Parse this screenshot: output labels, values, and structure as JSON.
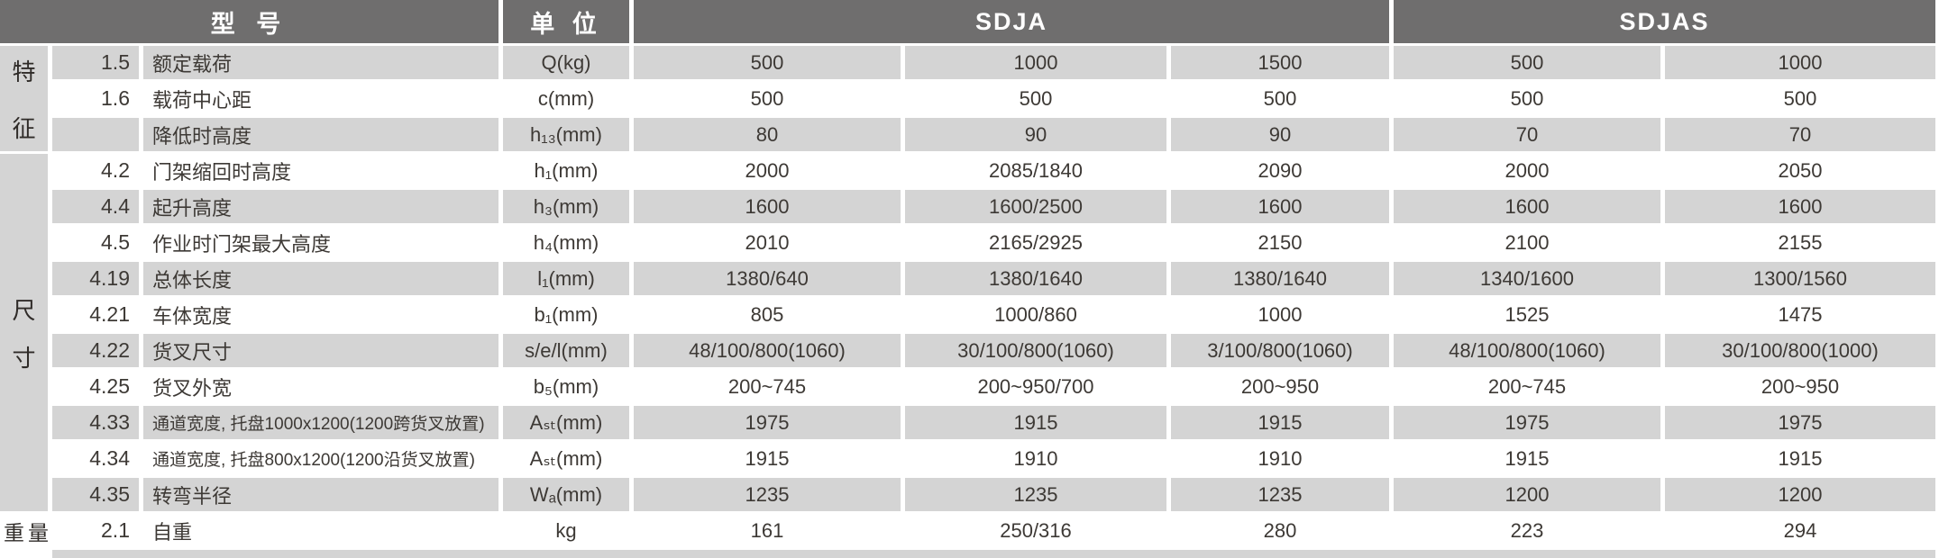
{
  "table": {
    "header": {
      "model": "型 号",
      "unit": "单 位",
      "sdja": "SDJA",
      "sdjas": "SDJAS"
    },
    "groups": {
      "features": "特征",
      "dimensions": "尺寸",
      "weight": "重量"
    },
    "rows": [
      {
        "no": "1.5",
        "label": "额定载荷",
        "unit": "Q(kg)",
        "values": [
          "500",
          "1000",
          "1500",
          "500",
          "1000"
        ]
      },
      {
        "no": "1.6",
        "label": "载荷中心距",
        "unit": "c(mm)",
        "values": [
          "500",
          "500",
          "500",
          "500",
          "500"
        ]
      },
      {
        "no": "",
        "label": "降低时高度",
        "unit": "h₁₃(mm)",
        "values": [
          "80",
          "90",
          "90",
          "70",
          "70"
        ]
      },
      {
        "no": "4.2",
        "label": "门架缩回时高度",
        "unit": "h₁(mm)",
        "values": [
          "2000",
          "2085/1840",
          "2090",
          "2000",
          "2050"
        ]
      },
      {
        "no": "4.4",
        "label": "起升高度",
        "unit": "h₃(mm)",
        "values": [
          "1600",
          "1600/2500",
          "1600",
          "1600",
          "1600"
        ]
      },
      {
        "no": "4.5",
        "label": "作业时门架最大高度",
        "unit": "h₄(mm)",
        "values": [
          "2010",
          "2165/2925",
          "2150",
          "2100",
          "2155"
        ]
      },
      {
        "no": "4.19",
        "label": "总体长度",
        "unit": "l₁(mm)",
        "values": [
          "1380/640",
          "1380/1640",
          "1380/1640",
          "1340/1600",
          "1300/1560"
        ]
      },
      {
        "no": "4.21",
        "label": "车体宽度",
        "unit": "b₁(mm)",
        "values": [
          "805",
          "1000/860",
          "1000",
          "1525",
          "1475"
        ]
      },
      {
        "no": "4.22",
        "label": "货叉尺寸",
        "unit": "s/e/l(mm)",
        "values": [
          "48/100/800(1060)",
          "30/100/800(1060)",
          "3/100/800(1060)",
          "48/100/800(1060)",
          "30/100/800(1000)"
        ]
      },
      {
        "no": "4.25",
        "label": "货叉外宽",
        "unit": "b₅(mm)",
        "values": [
          "200~745",
          "200~950/700",
          "200~950",
          "200~745",
          "200~950"
        ]
      },
      {
        "no": "4.33",
        "label": "通道宽度, 托盘1000x1200(1200跨货叉放置)",
        "unit": "Aₛₜ(mm)",
        "values": [
          "1975",
          "1915",
          "1915",
          "1975",
          "1975"
        ]
      },
      {
        "no": "4.34",
        "label": "通道宽度, 托盘800x1200(1200沿货叉放置)",
        "unit": "Aₛₜ(mm)",
        "values": [
          "1915",
          "1910",
          "1910",
          "1915",
          "1915"
        ]
      },
      {
        "no": "4.35",
        "label": "转弯半径",
        "unit": "Wₐ(mm)",
        "values": [
          "1235",
          "1235",
          "1235",
          "1200",
          "1200"
        ]
      },
      {
        "no": "2.1",
        "label": "自重",
        "unit": "kg",
        "values": [
          "161",
          "250/316",
          "280",
          "223",
          "294"
        ]
      }
    ]
  },
  "colors": {
    "header_bg": "#6f6e6e",
    "header_text": "#ffffff",
    "row_alt_bg": "#d4d4d4",
    "text": "#3d3935"
  }
}
